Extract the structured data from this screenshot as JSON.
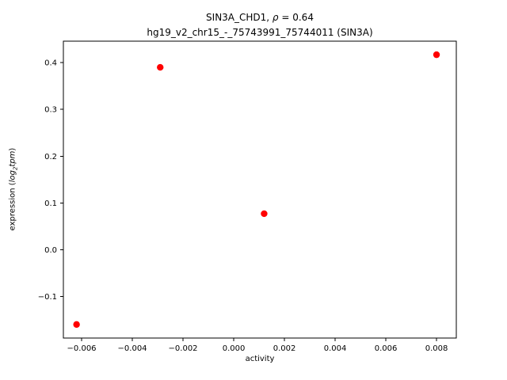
{
  "chart_data": {
    "type": "scatter",
    "title": {
      "part1": "SIN3A_CHD1, ",
      "rho": "ρ",
      "part2": " = 0.64"
    },
    "subtitle": "hg19_v2_chr15_-_75743991_75744011 (SIN3A)",
    "xlabel": "activity",
    "ylabel_parts": {
      "prefix": "expression (",
      "log": "log",
      "sub": "2",
      "var": "tpm",
      "suffix": ")"
    },
    "series": [
      {
        "name": "SIN3A_CHD1",
        "color": "#ff0000",
        "points": [
          {
            "x": -0.0062,
            "y": -0.16
          },
          {
            "x": -0.0029,
            "y": 0.39
          },
          {
            "x": 0.0012,
            "y": 0.077
          },
          {
            "x": 0.008,
            "y": 0.417
          }
        ]
      }
    ],
    "xlim": [
      -0.00672,
      0.00878
    ],
    "ylim": [
      -0.189,
      0.446
    ],
    "x_ticks": [
      {
        "value": -0.006,
        "label": "−0.006"
      },
      {
        "value": -0.004,
        "label": "−0.004"
      },
      {
        "value": -0.002,
        "label": "−0.002"
      },
      {
        "value": 0.0,
        "label": "0.000"
      },
      {
        "value": 0.002,
        "label": "0.002"
      },
      {
        "value": 0.004,
        "label": "0.004"
      },
      {
        "value": 0.006,
        "label": "0.006"
      },
      {
        "value": 0.008,
        "label": "0.008"
      }
    ],
    "y_ticks": [
      {
        "value": -0.1,
        "label": "−0.1"
      },
      {
        "value": 0.0,
        "label": "0.0"
      },
      {
        "value": 0.1,
        "label": "0.1"
      },
      {
        "value": 0.2,
        "label": "0.2"
      },
      {
        "value": 0.3,
        "label": "0.3"
      },
      {
        "value": 0.4,
        "label": "0.4"
      }
    ],
    "grid": false,
    "axes_color": "#000000",
    "background_color": "#ffffff"
  }
}
